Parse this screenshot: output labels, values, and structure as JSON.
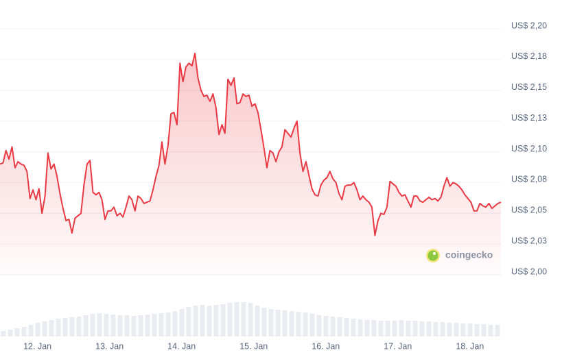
{
  "chart_data": {
    "type": "line",
    "watermark": "coingecko",
    "color": "#ea3943",
    "volume_color": "#e9edf2",
    "grid": true,
    "xlim": [
      11.48,
      18.43
    ],
    "xticks": [
      {
        "value": 12,
        "label": "12. Jan"
      },
      {
        "value": 13,
        "label": "13. Jan"
      },
      {
        "value": 14,
        "label": "14. Jan"
      },
      {
        "value": 15,
        "label": "15. Jan"
      },
      {
        "value": 16,
        "label": "16. Jan"
      },
      {
        "value": 17,
        "label": "17. Jan"
      },
      {
        "value": 18,
        "label": "18. Jan"
      }
    ],
    "ylim": [
      2.0,
      2.2
    ],
    "yticks": [
      {
        "value": 2.0,
        "label": "US$ 2,00"
      },
      {
        "value": 2.025,
        "label": "US$ 2,03"
      },
      {
        "value": 2.05,
        "label": "US$ 2,05"
      },
      {
        "value": 2.075,
        "label": "US$ 2,08"
      },
      {
        "value": 2.1,
        "label": "US$ 2,10"
      },
      {
        "value": 2.125,
        "label": "US$ 2,13"
      },
      {
        "value": 2.15,
        "label": "US$ 2,15"
      },
      {
        "value": 2.175,
        "label": "US$ 2,18"
      },
      {
        "value": 2.2,
        "label": "US$ 2,20"
      }
    ],
    "values": [
      2.09,
      2.091,
      2.101,
      2.094,
      2.104,
      2.087,
      2.092,
      2.09,
      2.089,
      2.084,
      2.062,
      2.069,
      2.061,
      2.07,
      2.05,
      2.064,
      2.099,
      2.086,
      2.09,
      2.08,
      2.066,
      2.054,
      2.044,
      2.045,
      2.034,
      2.046,
      2.048,
      2.05,
      2.073,
      2.09,
      2.093,
      2.067,
      2.065,
      2.067,
      2.061,
      2.045,
      2.052,
      2.052,
      2.055,
      2.048,
      2.05,
      2.047,
      2.055,
      2.064,
      2.061,
      2.052,
      2.064,
      2.062,
      2.058,
      2.059,
      2.06,
      2.069,
      2.08,
      2.089,
      2.108,
      2.09,
      2.105,
      2.131,
      2.132,
      2.122,
      2.172,
      2.157,
      2.169,
      2.172,
      2.17,
      2.18,
      2.16,
      2.15,
      2.145,
      2.146,
      2.141,
      2.147,
      2.136,
      2.114,
      2.122,
      2.115,
      2.159,
      2.154,
      2.16,
      2.139,
      2.14,
      2.147,
      2.145,
      2.146,
      2.137,
      2.139,
      2.132,
      2.118,
      2.103,
      2.087,
      2.101,
      2.099,
      2.092,
      2.1,
      2.104,
      2.118,
      2.115,
      2.112,
      2.119,
      2.125,
      2.099,
      2.084,
      2.092,
      2.081,
      2.07,
      2.065,
      2.064,
      2.073,
      2.077,
      2.079,
      2.084,
      2.078,
      2.075,
      2.066,
      2.061,
      2.072,
      2.073,
      2.073,
      2.075,
      2.069,
      2.061,
      2.064,
      2.061,
      2.059,
      2.055,
      2.032,
      2.044,
      2.05,
      2.049,
      2.055,
      2.076,
      2.074,
      2.072,
      2.067,
      2.064,
      2.065,
      2.06,
      2.055,
      2.064,
      2.064,
      2.06,
      2.059,
      2.061,
      2.063,
      2.061,
      2.062,
      2.06,
      2.063,
      2.072,
      2.079,
      2.072,
      2.075,
      2.074,
      2.072,
      2.069,
      2.065,
      2.062,
      2.059,
      2.052,
      2.052,
      2.058,
      2.056,
      2.055,
      2.058,
      2.054,
      2.056,
      2.058,
      2.059
    ],
    "vlim": [
      0,
      60
    ],
    "volume_values": [
      8,
      10,
      12,
      14,
      17,
      20,
      22,
      24,
      26,
      27,
      28,
      29,
      31,
      33,
      34,
      33,
      32,
      31,
      31,
      30,
      31,
      32,
      33,
      34,
      35,
      37,
      40,
      43,
      45,
      46,
      45,
      46,
      47,
      49,
      50,
      50,
      49,
      45,
      42,
      40,
      39,
      38,
      37,
      36,
      35,
      33,
      31,
      30,
      29,
      28,
      27,
      26,
      25,
      24,
      24,
      23,
      23,
      23,
      24,
      23,
      23,
      22,
      22,
      21,
      21,
      20,
      20,
      19,
      19,
      18,
      18,
      17,
      17
    ]
  }
}
